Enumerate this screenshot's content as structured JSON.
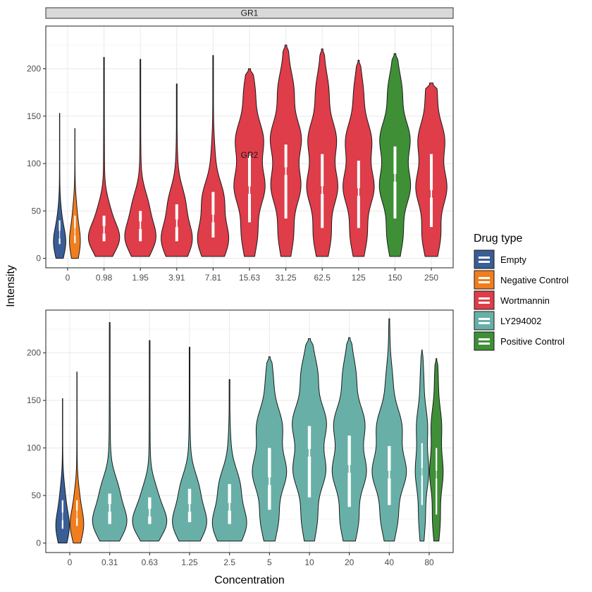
{
  "chart_data": {
    "type": "violin",
    "xlabel": "Concentration",
    "ylabel": "Intensity",
    "ylim": [
      -10,
      245
    ],
    "y_ticks": [
      0,
      50,
      100,
      150,
      200
    ],
    "grid": true,
    "legend": {
      "title": "Drug type",
      "position": "right",
      "entries": [
        {
          "label": "Empty",
          "color": "#3a5d95"
        },
        {
          "label": "Negative Control",
          "color": "#f07e1e"
        },
        {
          "label": "Wortmannin",
          "color": "#de3d49"
        },
        {
          "label": "LY294002",
          "color": "#68b0a7"
        },
        {
          "label": "Positive Control",
          "color": "#3f8f37"
        }
      ]
    },
    "panels": [
      {
        "title": "GR1",
        "categories": [
          "0",
          "0.98",
          "1.95",
          "3.91",
          "7.81",
          "15.63",
          "31.25",
          "62.5",
          "125",
          "150",
          "250"
        ],
        "violins": [
          {
            "category": "0",
            "drug": "Empty",
            "offset": -0.22,
            "min": 0,
            "max": 153,
            "q1": 15,
            "median": 25,
            "q3": 40,
            "mode": 20,
            "spread": 0.34
          },
          {
            "category": "0",
            "drug": "Negative Control",
            "offset": 0.2,
            "min": 0,
            "max": 137,
            "q1": 16,
            "median": 28,
            "q3": 45,
            "mode": 22,
            "spread": 0.3
          },
          {
            "category": "0.98",
            "drug": "Wortmannin",
            "offset": 0,
            "min": 2,
            "max": 212,
            "q1": 18,
            "median": 30,
            "q3": 45,
            "mode": 26,
            "spread": 0.86
          },
          {
            "category": "1.95",
            "drug": "Wortmannin",
            "offset": 0,
            "min": 2,
            "max": 210,
            "q1": 18,
            "median": 35,
            "q3": 50,
            "mode": 30,
            "spread": 0.86
          },
          {
            "category": "3.91",
            "drug": "Wortmannin",
            "offset": 0,
            "min": 2,
            "max": 184,
            "q1": 18,
            "median": 37,
            "q3": 57,
            "mode": 28,
            "spread": 0.86
          },
          {
            "category": "7.81",
            "drug": "Wortmannin",
            "offset": 0,
            "min": 2,
            "max": 214,
            "q1": 22,
            "median": 42,
            "q3": 70,
            "mode": 32,
            "spread": 0.86
          },
          {
            "category": "15.63",
            "drug": "Wortmannin",
            "offset": 0,
            "min": 2,
            "max": 200,
            "q1": 38,
            "median": 72,
            "q3": 110,
            "mode": 95,
            "spread": 0.86
          },
          {
            "category": "31.25",
            "drug": "Wortmannin",
            "offset": 0,
            "min": 2,
            "max": 225,
            "q1": 42,
            "median": 92,
            "q3": 120,
            "mode": 105,
            "spread": 0.86
          },
          {
            "category": "62.5",
            "drug": "Wortmannin",
            "offset": 0,
            "min": 2,
            "max": 221,
            "q1": 32,
            "median": 72,
            "q3": 110,
            "mode": 95,
            "spread": 0.86
          },
          {
            "category": "125",
            "drug": "Wortmannin",
            "offset": 0,
            "min": 2,
            "max": 209,
            "q1": 32,
            "median": 70,
            "q3": 103,
            "mode": 90,
            "spread": 0.86
          },
          {
            "category": "150",
            "drug": "Positive Control",
            "offset": 0,
            "min": 2,
            "max": 216,
            "q1": 42,
            "median": 85,
            "q3": 118,
            "mode": 100,
            "spread": 0.86
          },
          {
            "category": "250",
            "drug": "Wortmannin",
            "offset": 0,
            "min": 2,
            "max": 185,
            "q1": 33,
            "median": 68,
            "q3": 110,
            "mode": 90,
            "spread": 0.86
          }
        ]
      },
      {
        "title": "GR2",
        "categories": [
          "0",
          "0.31",
          "0.63",
          "1.25",
          "2.5",
          "5",
          "10",
          "20",
          "40",
          "80"
        ],
        "violins": [
          {
            "category": "0",
            "drug": "Empty",
            "offset": -0.18,
            "min": 0,
            "max": 152,
            "q1": 15,
            "median": 28,
            "q3": 45,
            "mode": 22,
            "spread": 0.34
          },
          {
            "category": "0",
            "drug": "Negative Control",
            "offset": 0.18,
            "min": 0,
            "max": 180,
            "q1": 18,
            "median": 30,
            "q3": 45,
            "mode": 24,
            "spread": 0.34
          },
          {
            "category": "0.31",
            "drug": "LY294002",
            "offset": 0,
            "min": 2,
            "max": 232,
            "q1": 20,
            "median": 37,
            "q3": 52,
            "mode": 30,
            "spread": 0.86
          },
          {
            "category": "0.63",
            "drug": "LY294002",
            "offset": 0,
            "min": 2,
            "max": 213,
            "q1": 20,
            "median": 32,
            "q3": 48,
            "mode": 28,
            "spread": 0.86
          },
          {
            "category": "1.25",
            "drug": "LY294002",
            "offset": 0,
            "min": 2,
            "max": 206,
            "q1": 22,
            "median": 37,
            "q3": 57,
            "mode": 30,
            "spread": 0.86
          },
          {
            "category": "2.5",
            "drug": "LY294002",
            "offset": 0,
            "min": 2,
            "max": 172,
            "q1": 20,
            "median": 38,
            "q3": 62,
            "mode": 30,
            "spread": 0.86
          },
          {
            "category": "5",
            "drug": "LY294002",
            "offset": 0,
            "min": 2,
            "max": 196,
            "q1": 35,
            "median": 65,
            "q3": 100,
            "mode": 85,
            "spread": 0.86
          },
          {
            "category": "10",
            "drug": "LY294002",
            "offset": 0,
            "min": 2,
            "max": 215,
            "q1": 48,
            "median": 95,
            "q3": 123,
            "mode": 105,
            "spread": 0.86
          },
          {
            "category": "20",
            "drug": "LY294002",
            "offset": 0,
            "min": 2,
            "max": 216,
            "q1": 38,
            "median": 78,
            "q3": 113,
            "mode": 95,
            "spread": 0.86
          },
          {
            "category": "40",
            "drug": "LY294002",
            "offset": 0,
            "min": 2,
            "max": 236,
            "q1": 40,
            "median": 72,
            "q3": 102,
            "mode": 85,
            "spread": 0.86
          },
          {
            "category": "80",
            "drug": "LY294002",
            "offset": -0.18,
            "min": 2,
            "max": 203,
            "q1": 40,
            "median": 75,
            "q3": 105,
            "mode": 90,
            "spread": 0.34
          },
          {
            "category": "80",
            "drug": "Positive Control",
            "offset": 0.18,
            "min": 2,
            "max": 194,
            "q1": 30,
            "median": 72,
            "q3": 100,
            "mode": 85,
            "spread": 0.34
          }
        ]
      }
    ]
  }
}
